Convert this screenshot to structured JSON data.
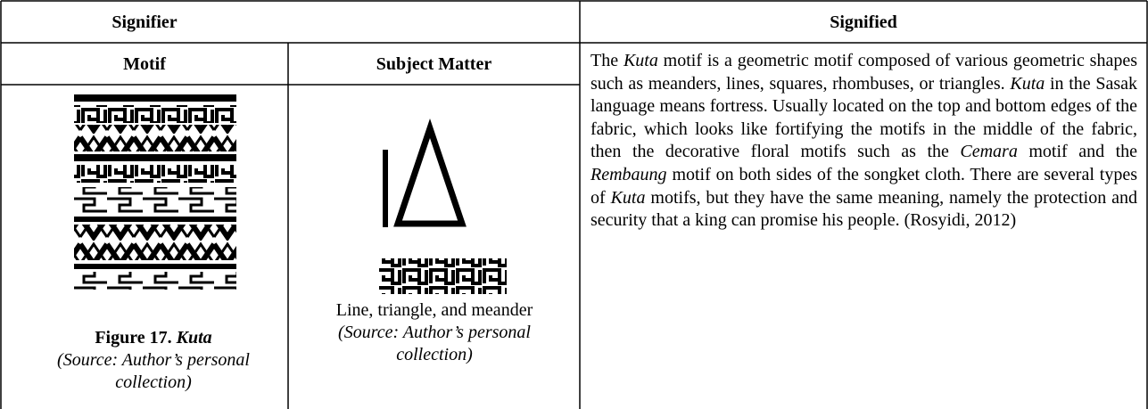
{
  "header": {
    "signifier": "Signifier",
    "signified": "Signified"
  },
  "subheader": {
    "motif": "Motif",
    "subject_matter": "Subject Matter"
  },
  "motif_caption": {
    "figure": "Figure 17.",
    "name": "Kuta",
    "source": "(Source: Author’s personal collection)"
  },
  "subject_caption": {
    "description": "Line, triangle, and meander",
    "source": "(Source: Author’s personal collection)"
  },
  "signified_text": [
    "The ",
    "Kuta",
    " motif is a geometric motif composed of various geometric shapes such as meanders, lines, squares, rhombuses, or triangles. ",
    "Kuta",
    " in the Sasak language means fortress. Usually located on the top and bottom edges of the fabric, which looks like fortifying the motifs in the middle of the fabric, then the decorative floral motifs such as the ",
    "Cemara",
    " motif and the ",
    "Rembaung",
    " motif on both sides of the songket cloth. There are several types of ",
    "Kuta",
    " motifs, but they have the same meaning, namely the protection and security that a king can promise his people. (Rosyidi, 2012)"
  ]
}
